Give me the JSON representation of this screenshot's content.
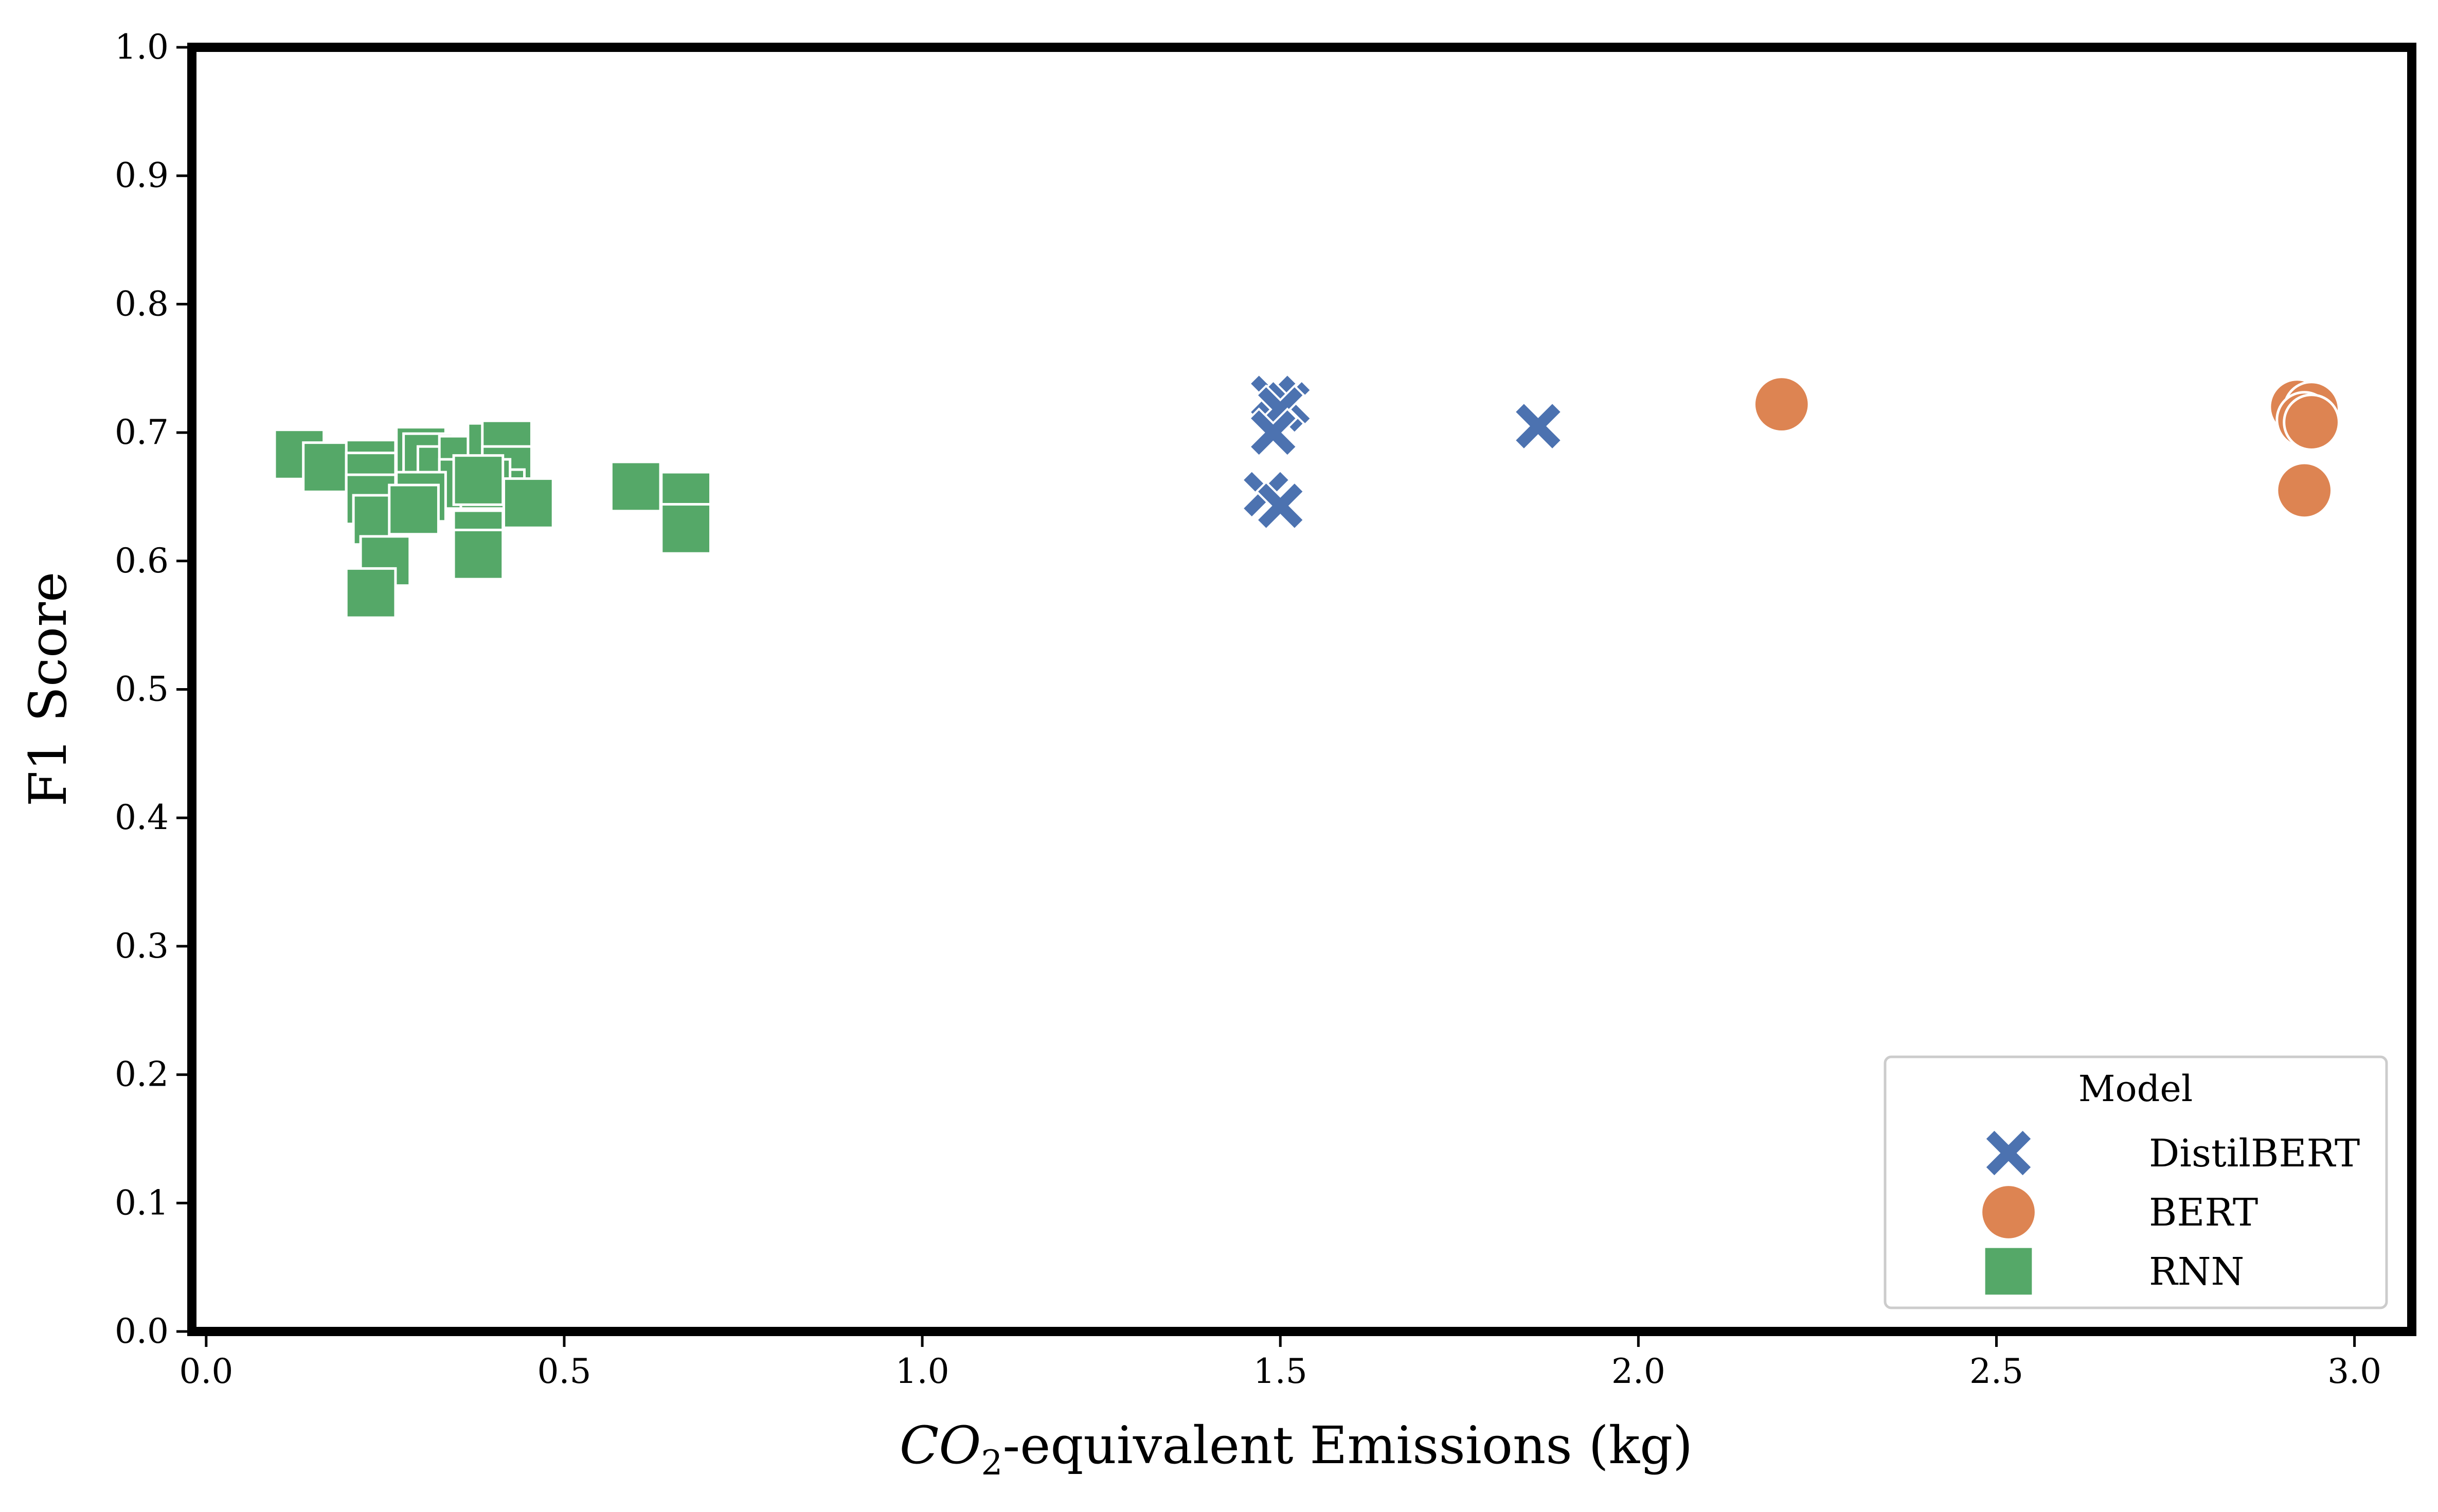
{
  "chart_data": {
    "type": "scatter",
    "xlabel_main": "CO",
    "xlabel_sub": "2",
    "xlabel_rest": "-equivalent Emissions (kg)",
    "ylabel": "F1 Score",
    "xlim": [
      -0.02,
      3.08
    ],
    "ylim": [
      0.0,
      1.0
    ],
    "xticks": [
      "0.0",
      "0.5",
      "1.0",
      "1.5",
      "2.0",
      "2.5",
      "3.0"
    ],
    "yticks": [
      "0.0",
      "0.1",
      "0.2",
      "0.3",
      "0.4",
      "0.5",
      "0.6",
      "0.7",
      "0.8",
      "0.9",
      "1.0"
    ],
    "grid": false,
    "legend": {
      "title": "Model",
      "position": "lower-right"
    },
    "series": [
      {
        "name": "DistilBERT",
        "marker": "x",
        "color": "#4c72b0",
        "points": [
          [
            1.49,
            0.727
          ],
          [
            1.51,
            0.722
          ],
          [
            1.5,
            0.718
          ],
          [
            1.49,
            0.7
          ],
          [
            1.86,
            0.705
          ],
          [
            1.48,
            0.652
          ],
          [
            1.5,
            0.643
          ]
        ]
      },
      {
        "name": "BERT",
        "marker": "circle",
        "color": "#dd8452",
        "points": [
          [
            2.2,
            0.722
          ],
          [
            2.92,
            0.72
          ],
          [
            2.94,
            0.718
          ],
          [
            2.93,
            0.71
          ],
          [
            2.94,
            0.708
          ],
          [
            2.93,
            0.655
          ]
        ]
      },
      {
        "name": "RNN",
        "marker": "square",
        "color": "#55a868",
        "points": [
          [
            0.13,
            0.683
          ],
          [
            0.17,
            0.673
          ],
          [
            0.23,
            0.675
          ],
          [
            0.23,
            0.665
          ],
          [
            0.23,
            0.648
          ],
          [
            0.24,
            0.632
          ],
          [
            0.25,
            0.6
          ],
          [
            0.23,
            0.575
          ],
          [
            0.3,
            0.685
          ],
          [
            0.31,
            0.68
          ],
          [
            0.33,
            0.67
          ],
          [
            0.36,
            0.678
          ],
          [
            0.36,
            0.66
          ],
          [
            0.3,
            0.65
          ],
          [
            0.29,
            0.64
          ],
          [
            0.4,
            0.688
          ],
          [
            0.42,
            0.69
          ],
          [
            0.42,
            0.67
          ],
          [
            0.41,
            0.652
          ],
          [
            0.39,
            0.66
          ],
          [
            0.38,
            0.663
          ],
          [
            0.45,
            0.645
          ],
          [
            0.38,
            0.62
          ],
          [
            0.38,
            0.605
          ],
          [
            0.6,
            0.658
          ],
          [
            0.67,
            0.65
          ],
          [
            0.67,
            0.625
          ]
        ]
      }
    ]
  }
}
